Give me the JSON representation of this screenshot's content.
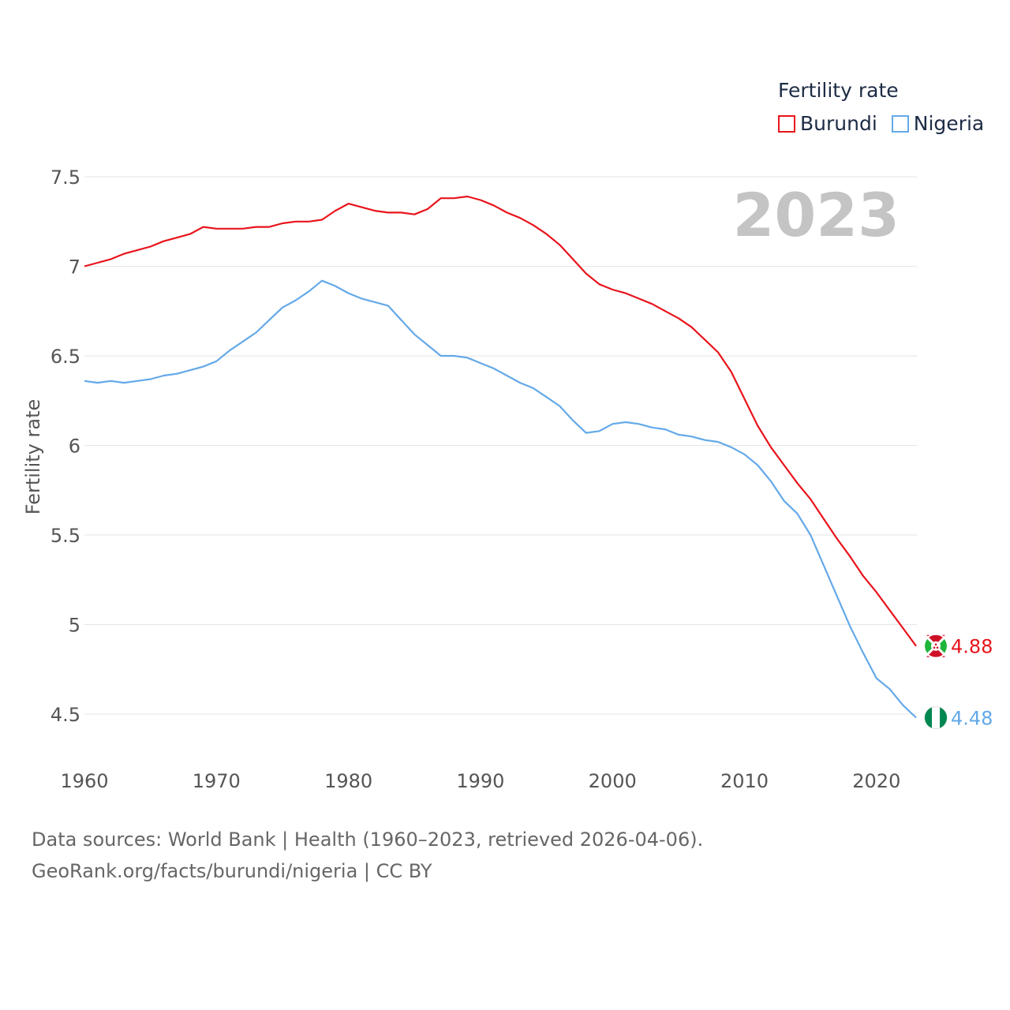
{
  "chart_data": {
    "type": "line",
    "title": "",
    "ylabel": "Fertility rate",
    "xlabel": "",
    "year_label": "2023",
    "legend_title": "Fertility rate",
    "xlim": [
      1960,
      2023
    ],
    "ylim": [
      4.5,
      7.5
    ],
    "x_ticks": [
      1960,
      1970,
      1980,
      1990,
      2000,
      2010,
      2020
    ],
    "y_ticks": [
      {
        "value": 4.5,
        "label": "4.5"
      },
      {
        "value": 5,
        "label": "5"
      },
      {
        "value": 5.5,
        "label": "5.5"
      },
      {
        "value": 6,
        "label": "6"
      },
      {
        "value": 6.5,
        "label": "6.5"
      },
      {
        "value": 7,
        "label": "7"
      },
      {
        "value": 7.5,
        "label": "7.5"
      }
    ],
    "x": [
      1960,
      1961,
      1962,
      1963,
      1964,
      1965,
      1966,
      1967,
      1968,
      1969,
      1970,
      1971,
      1972,
      1973,
      1974,
      1975,
      1976,
      1977,
      1978,
      1979,
      1980,
      1981,
      1982,
      1983,
      1984,
      1985,
      1986,
      1987,
      1988,
      1989,
      1990,
      1991,
      1992,
      1993,
      1994,
      1995,
      1996,
      1997,
      1998,
      1999,
      2000,
      2001,
      2002,
      2003,
      2004,
      2005,
      2006,
      2007,
      2008,
      2009,
      2010,
      2011,
      2012,
      2013,
      2014,
      2015,
      2016,
      2017,
      2018,
      2019,
      2020,
      2021,
      2022,
      2023
    ],
    "series": [
      {
        "name": "Burundi",
        "color": "#e8141c",
        "end_label": "4.88",
        "values": [
          7.0,
          7.02,
          7.04,
          7.07,
          7.09,
          7.11,
          7.14,
          7.16,
          7.18,
          7.22,
          7.21,
          7.21,
          7.21,
          7.22,
          7.22,
          7.24,
          7.25,
          7.25,
          7.26,
          7.31,
          7.35,
          7.33,
          7.31,
          7.3,
          7.3,
          7.29,
          7.32,
          7.38,
          7.38,
          7.39,
          7.37,
          7.34,
          7.3,
          7.27,
          7.23,
          7.18,
          7.12,
          7.04,
          6.96,
          6.9,
          6.87,
          6.85,
          6.82,
          6.79,
          6.75,
          6.71,
          6.66,
          6.59,
          6.52,
          6.41,
          6.26,
          6.11,
          5.99,
          5.89,
          5.79,
          5.7,
          5.59,
          5.48,
          5.38,
          5.27,
          5.18,
          5.08,
          4.98,
          4.88
        ]
      },
      {
        "name": "Nigeria",
        "color": "#64a9e8",
        "end_label": "4.48",
        "values": [
          6.36,
          6.35,
          6.36,
          6.35,
          6.36,
          6.37,
          6.39,
          6.4,
          6.42,
          6.44,
          6.47,
          6.53,
          6.58,
          6.63,
          6.7,
          6.77,
          6.81,
          6.86,
          6.92,
          6.89,
          6.85,
          6.82,
          6.8,
          6.78,
          6.7,
          6.62,
          6.56,
          6.5,
          6.5,
          6.49,
          6.46,
          6.43,
          6.39,
          6.35,
          6.32,
          6.27,
          6.22,
          6.14,
          6.07,
          6.08,
          6.12,
          6.13,
          6.12,
          6.1,
          6.09,
          6.06,
          6.05,
          6.03,
          6.02,
          5.99,
          5.95,
          5.89,
          5.8,
          5.69,
          5.62,
          5.5,
          5.33,
          5.16,
          4.99,
          4.84,
          4.7,
          4.64,
          4.55,
          4.48
        ]
      }
    ]
  },
  "source": {
    "line1": "Data sources: World Bank | Health (1960–2023, retrieved 2026-04-06).",
    "line2": "GeoRank.org/facts/burundi/nigeria | CC BY"
  }
}
